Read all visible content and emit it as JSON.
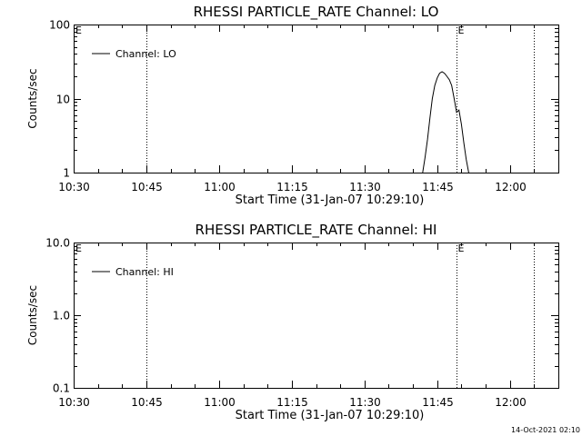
{
  "footer": {
    "timestamp": "14-Oct-2021 02:10"
  },
  "chart_data": [
    {
      "type": "line",
      "title": "RHESSI PARTICLE_RATE Channel: LO",
      "xlabel": "Start Time (31-Jan-07 10:29:10)",
      "ylabel": "Counts/sec",
      "yscale": "log",
      "xlim": [
        "10:30",
        "12:10"
      ],
      "ylim": [
        1,
        100
      ],
      "x_ticks": [
        "10:30",
        "10:45",
        "11:00",
        "11:15",
        "11:30",
        "11:45",
        "12:00"
      ],
      "y_ticks": [
        "1",
        "10",
        "100"
      ],
      "legend": {
        "position": "top-left",
        "entries": [
          "Channel: LO"
        ]
      },
      "markers": [
        {
          "time": "10:45",
          "label": ""
        },
        {
          "time": "11:49",
          "label": "E"
        },
        {
          "time": "12:05",
          "label": ""
        }
      ],
      "corner_label": "E",
      "series": [
        {
          "name": "Channel: LO",
          "x": [
            "11:42:00",
            "11:42:30",
            "11:43:00",
            "11:43:30",
            "11:44:00",
            "11:44:30",
            "11:45:00",
            "11:45:30",
            "11:46:00",
            "11:46:30",
            "11:47:00",
            "11:47:30",
            "11:48:00",
            "11:48:30",
            "11:49:00",
            "11:49:30",
            "11:50:00",
            "11:50:30",
            "11:51:00",
            "11:51:30"
          ],
          "y": [
            1.0,
            1.6,
            2.8,
            5.5,
            10,
            15,
            19,
            22,
            23,
            22,
            20,
            18,
            15,
            10,
            6.5,
            7,
            4.5,
            2.5,
            1.5,
            1.0
          ]
        }
      ]
    },
    {
      "type": "line",
      "title": "RHESSI PARTICLE_RATE Channel: HI",
      "xlabel": "Start Time (31-Jan-07 10:29:10)",
      "ylabel": "Counts/sec",
      "yscale": "log",
      "xlim": [
        "10:30",
        "12:10"
      ],
      "ylim": [
        0.1,
        10
      ],
      "x_ticks": [
        "10:30",
        "10:45",
        "11:00",
        "11:15",
        "11:30",
        "11:45",
        "12:00"
      ],
      "y_ticks": [
        "0.1",
        "1.0",
        "10.0"
      ],
      "legend": {
        "position": "top-left",
        "entries": [
          "Channel: HI"
        ]
      },
      "markers": [
        {
          "time": "10:45",
          "label": ""
        },
        {
          "time": "11:49",
          "label": "E"
        },
        {
          "time": "12:05",
          "label": ""
        }
      ],
      "corner_label": "E",
      "series": [
        {
          "name": "Channel: HI",
          "x": [],
          "y": []
        }
      ]
    }
  ]
}
